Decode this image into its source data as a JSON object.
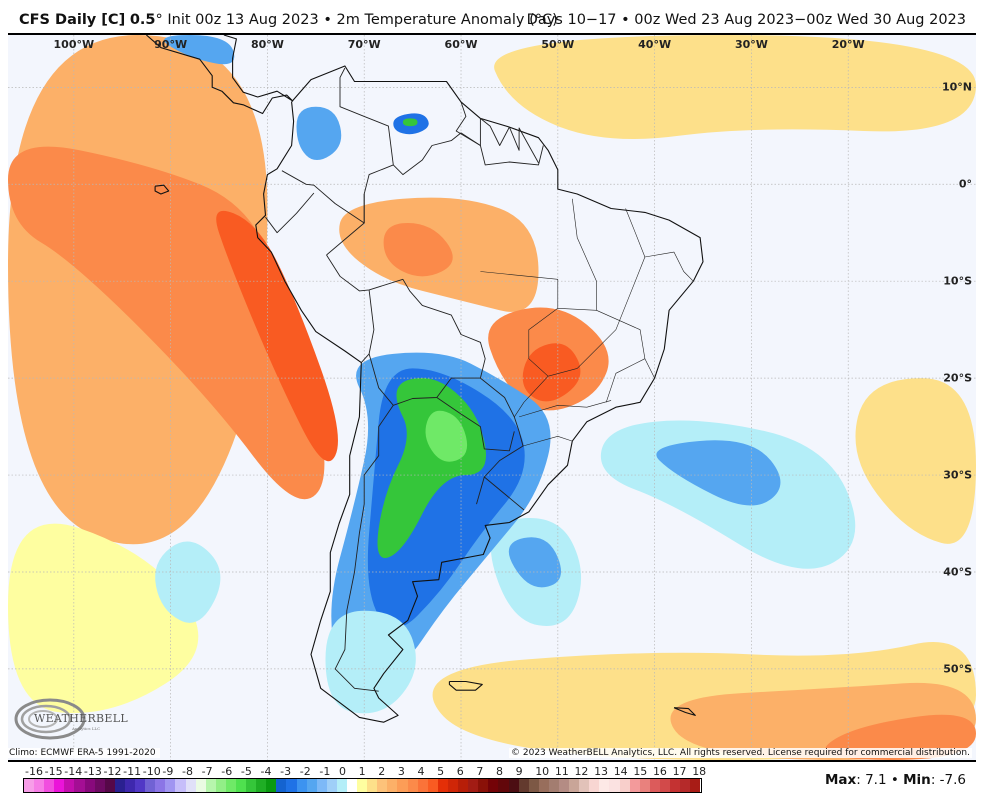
{
  "header": {
    "model": "CFS Daily [C]",
    "resolution": "0.5",
    "degree_symbol": "°",
    "init": "Init 00z 13 Aug 2023",
    "separator": "•",
    "field": "2m Temperature Anomaly (°C)",
    "valid_range": "Days 10−17 • 00z Wed 23 Aug 2023−00z Wed 30 Aug 2023"
  },
  "map": {
    "region": "South America",
    "longitude_labels": [
      "100°W",
      "90°W",
      "80°W",
      "70°W",
      "60°W",
      "50°W",
      "40°W",
      "30°W",
      "20°W"
    ],
    "longitude_values": [
      -100,
      -90,
      -80,
      -70,
      -60,
      -50,
      -40,
      -30,
      -20
    ],
    "latitude_labels": [
      "10°N",
      "0°",
      "10°S",
      "20°S",
      "30°S",
      "40°S",
      "50°S"
    ],
    "latitude_values": [
      10,
      0,
      -10,
      -20,
      -30,
      -40,
      -50
    ],
    "extent": {
      "lon_min": -106.8,
      "lon_max": -6.8,
      "lat_max": 15.4,
      "lat_min": -59.4
    },
    "anomaly_regions": [
      {
        "name": "east-pacific-warm",
        "value": 3,
        "poly": [
          [
            -106.8,
            15.4
          ],
          [
            -80,
            15.4
          ],
          [
            -80,
            -20
          ],
          [
            -90,
            -40
          ],
          [
            -106.8,
            -32
          ]
        ]
      },
      {
        "name": "east-pacific-warmer",
        "value": 4,
        "poly": [
          [
            -106.8,
            5
          ],
          [
            -92,
            2
          ],
          [
            -82,
            -2
          ],
          [
            -78,
            -12
          ],
          [
            -73,
            -30
          ],
          [
            -77,
            -34
          ],
          [
            -86,
            -22
          ],
          [
            -100,
            -8
          ],
          [
            -106.8,
            -4
          ]
        ]
      },
      {
        "name": "peru-coast-hot",
        "value": 5,
        "poly": [
          [
            -86,
            -2
          ],
          [
            -81,
            -4
          ],
          [
            -77,
            -12
          ],
          [
            -72,
            -26
          ],
          [
            -74,
            -30
          ],
          [
            -79,
            -20
          ],
          [
            -84,
            -8
          ]
        ]
      },
      {
        "name": "south-pacific-mild",
        "value": 1,
        "poly": [
          [
            -106.8,
            -33
          ],
          [
            -92,
            -38
          ],
          [
            -85,
            -48
          ],
          [
            -96,
            -55
          ],
          [
            -106.8,
            -54
          ]
        ]
      },
      {
        "name": "south-pacific-neutral",
        "value": 0,
        "poly": [
          [
            -106.8,
            -54
          ],
          [
            -96,
            -55
          ],
          [
            -88,
            -59.4
          ],
          [
            -106.8,
            -59.4
          ]
        ]
      },
      {
        "name": "south-pacific-cool",
        "value": -1,
        "poly": [
          [
            -92,
            -39
          ],
          [
            -88,
            -36
          ],
          [
            -84,
            -40
          ],
          [
            -87,
            -46
          ],
          [
            -91,
            -44
          ]
        ]
      },
      {
        "name": "amazon-warm",
        "value": 3,
        "poly": [
          [
            -72,
            -2
          ],
          [
            -60,
            -1
          ],
          [
            -52,
            -4
          ],
          [
            -52,
            -14
          ],
          [
            -60,
            -12
          ],
          [
            -68,
            -10
          ],
          [
            -73,
            -6
          ]
        ]
      },
      {
        "name": "amazon-warmer",
        "value": 4,
        "poly": [
          [
            -68,
            -4
          ],
          [
            -63,
            -4
          ],
          [
            -60,
            -8
          ],
          [
            -64,
            -10
          ],
          [
            -68,
            -8
          ]
        ]
      },
      {
        "name": "brazil-central-warm",
        "value": 4,
        "poly": [
          [
            -58,
            -14
          ],
          [
            -50,
            -12
          ],
          [
            -44,
            -17
          ],
          [
            -46,
            -22
          ],
          [
            -52,
            -24
          ],
          [
            -56,
            -20
          ]
        ]
      },
      {
        "name": "brazil-central-hot",
        "value": 5,
        "poly": [
          [
            -53,
            -17
          ],
          [
            -49,
            -16
          ],
          [
            -47,
            -20
          ],
          [
            -51,
            -23
          ],
          [
            -54,
            -21
          ]
        ]
      },
      {
        "name": "northeast-brazil-neutral",
        "value": 0,
        "poly": [
          [
            -48,
            -3
          ],
          [
            -38,
            -3
          ],
          [
            -35,
            -6
          ],
          [
            -36,
            -12
          ],
          [
            -40,
            -16
          ],
          [
            -44,
            -12
          ],
          [
            -47,
            -8
          ]
        ]
      },
      {
        "name": "atlantic-north-warm",
        "value": 2,
        "poly": [
          [
            -58,
            15.4
          ],
          [
            -6.8,
            15.4
          ],
          [
            -6.8,
            5
          ],
          [
            -30,
            6
          ],
          [
            -45,
            4
          ],
          [
            -55,
            8
          ]
        ]
      },
      {
        "name": "atlantic-equator-neutral",
        "value": 0,
        "poly": [
          [
            -40,
            2
          ],
          [
            -20,
            2
          ],
          [
            -6.8,
            0
          ],
          [
            -6.8,
            -4
          ],
          [
            -25,
            -3
          ],
          [
            -38,
            -1
          ]
        ]
      },
      {
        "name": "south-atlantic-cool",
        "value": -1,
        "poly": [
          [
            -45,
            -25
          ],
          [
            -35,
            -24
          ],
          [
            -22,
            -27
          ],
          [
            -18,
            -37
          ],
          [
            -25,
            -41
          ],
          [
            -38,
            -33
          ],
          [
            -46,
            -30
          ]
        ]
      },
      {
        "name": "south-atlantic-cooler",
        "value": -2,
        "poly": [
          [
            -41,
            -27
          ],
          [
            -30,
            -26
          ],
          [
            -26,
            -31
          ],
          [
            -30,
            -34
          ],
          [
            -38,
            -30
          ]
        ]
      },
      {
        "name": "argentine-sea-cool",
        "value": -1,
        "poly": [
          [
            -58,
            -35
          ],
          [
            -50,
            -34
          ],
          [
            -47,
            -40
          ],
          [
            -49,
            -46
          ],
          [
            -55,
            -45
          ]
        ]
      },
      {
        "name": "argentine-sea-cooler",
        "value": -2,
        "poly": [
          [
            -56,
            -37
          ],
          [
            -51,
            -36
          ],
          [
            -49,
            -41
          ],
          [
            -53,
            -42
          ]
        ]
      },
      {
        "name": "east-atlantic-warm",
        "value": 2,
        "poly": [
          [
            -18,
            -20
          ],
          [
            -6.8,
            -20
          ],
          [
            -6.8,
            -38
          ],
          [
            -14,
            -36
          ],
          [
            -20,
            -28
          ]
        ]
      },
      {
        "name": "far-south-warm",
        "value": 2,
        "poly": [
          [
            -66,
            -50
          ],
          [
            -40,
            -48
          ],
          [
            -20,
            -49
          ],
          [
            -6.8,
            -46
          ],
          [
            -6.8,
            -59.4
          ],
          [
            -58,
            -59.4
          ]
        ]
      },
      {
        "name": "far-south-warmer",
        "value": 3,
        "poly": [
          [
            -40,
            -53
          ],
          [
            -22,
            -52
          ],
          [
            -6.8,
            -51
          ],
          [
            -6.8,
            -59.4
          ],
          [
            -36,
            -59.4
          ]
        ]
      },
      {
        "name": "far-south-hot",
        "value": 4,
        "poly": [
          [
            -20,
            -56
          ],
          [
            -6.8,
            -54
          ],
          [
            -6.8,
            -59.4
          ],
          [
            -24,
            -59.4
          ]
        ]
      },
      {
        "name": "southern-cone-cool",
        "value": -2,
        "poly": [
          [
            -72,
            -18
          ],
          [
            -62,
            -17
          ],
          [
            -56,
            -20
          ],
          [
            -50,
            -24
          ],
          [
            -52,
            -32
          ],
          [
            -57,
            -38
          ],
          [
            -62,
            -44
          ],
          [
            -66,
            -50
          ],
          [
            -72,
            -52
          ],
          [
            -74,
            -44
          ],
          [
            -71,
            -33
          ],
          [
            -69,
            -24
          ]
        ]
      },
      {
        "name": "southern-cone-colder",
        "value": -3,
        "poly": [
          [
            -68,
            -19
          ],
          [
            -62,
            -19
          ],
          [
            -54,
            -24
          ],
          [
            -53,
            -30
          ],
          [
            -58,
            -36
          ],
          [
            -62,
            -42
          ],
          [
            -67,
            -47
          ],
          [
            -70,
            -42
          ],
          [
            -69,
            -30
          ]
        ]
      },
      {
        "name": "chaco-pampas-green",
        "value": -5,
        "poly": [
          [
            -66,
            -20
          ],
          [
            -62,
            -20
          ],
          [
            -58,
            -24
          ],
          [
            -57,
            -30
          ],
          [
            -62,
            -30
          ],
          [
            -66,
            -38
          ],
          [
            -69,
            -39
          ],
          [
            -68,
            -32
          ],
          [
            -65,
            -26
          ],
          [
            -67,
            -22
          ]
        ]
      },
      {
        "name": "chaco-core-green",
        "value": -6,
        "poly": [
          [
            -63,
            -23
          ],
          [
            -60,
            -24
          ],
          [
            -59,
            -28
          ],
          [
            -62,
            -29
          ],
          [
            -64,
            -26
          ]
        ]
      },
      {
        "name": "venezuela-cold-spot",
        "value": -3,
        "poly": [
          [
            -67,
            7
          ],
          [
            -64,
            7.5
          ],
          [
            -63,
            6
          ],
          [
            -65,
            5
          ],
          [
            -67,
            5.5
          ]
        ]
      },
      {
        "name": "venezuela-green-spot",
        "value": -5,
        "poly": [
          [
            -66,
            6.8
          ],
          [
            -64.5,
            6.8
          ],
          [
            -64.5,
            6
          ],
          [
            -66,
            6
          ]
        ]
      },
      {
        "name": "colombia-cool",
        "value": -2,
        "poly": [
          [
            -77,
            8
          ],
          [
            -73,
            8
          ],
          [
            -72,
            4
          ],
          [
            -75,
            2
          ],
          [
            -77,
            4
          ]
        ]
      },
      {
        "name": "central-america-cool",
        "value": -2,
        "poly": [
          [
            -92,
            15.4
          ],
          [
            -84,
            15.4
          ],
          [
            -83,
            12
          ],
          [
            -88,
            13
          ]
        ]
      },
      {
        "name": "patagonia-light-cool",
        "value": -1,
        "poly": [
          [
            -74,
            -44
          ],
          [
            -66,
            -44
          ],
          [
            -64,
            -50
          ],
          [
            -68,
            -55
          ],
          [
            -74,
            -54
          ]
        ]
      }
    ]
  },
  "credits": {
    "climo": "Climo: ECMWF ERA-5 1991-2020",
    "copyright": "© 2023 WeatherBELL Analytics, LLC. All rights reserved. License required for commercial distribution.",
    "logo_text": "WEATHERBELL",
    "logo_sub": "Analytics LLC"
  },
  "legend": {
    "labels": [
      "-16",
      "-15",
      "-14",
      "-13",
      "-12",
      "-11",
      "-10",
      "-9",
      "-8",
      "-7",
      "-6",
      "-5",
      "-4",
      "-3",
      "-2",
      "-1",
      "0",
      "1",
      "2",
      "3",
      "4",
      "5",
      "6",
      "7",
      "8",
      "9",
      "10",
      "11",
      "12",
      "13",
      "14",
      "15",
      "16",
      "17",
      "18"
    ],
    "colors": [
      "#f79ee8",
      "#f67ee6",
      "#f14edf",
      "#eb14d9",
      "#c40fae",
      "#a40e94",
      "#88097c",
      "#6e0a63",
      "#560848",
      "#2a2090",
      "#3e28ad",
      "#5138c6",
      "#7162d4",
      "#8b75e6",
      "#a095f1",
      "#c6befa",
      "#e0e0f8",
      "#eafbe3",
      "#b6f5ad",
      "#92ee87",
      "#6fe967",
      "#4fe14f",
      "#35c63a",
      "#1fae25",
      "#0a9a11",
      "#1463d0",
      "#1f72e6",
      "#3c93f0",
      "#55a6f0",
      "#7db9f7",
      "#9fcff8",
      "#b4eef8",
      "#ffffff",
      "#fefea0",
      "#fde08a",
      "#fdc27a",
      "#fcb068",
      "#fc9d57",
      "#fb8a4a",
      "#fa7339",
      "#f95b22",
      "#e42f07",
      "#cf2607",
      "#b71e08",
      "#a21c14",
      "#8a1108",
      "#740307",
      "#62070a",
      "#4c0e13",
      "#633a2e",
      "#7d5845",
      "#986e5c",
      "#a37d70",
      "#b48c84",
      "#c9a598",
      "#e2c2b9",
      "#f8d6d2",
      "#fde9e6",
      "#fbe2e1",
      "#f8cfcb",
      "#f39a9b",
      "#e9817d",
      "#dc5b5b",
      "#d24a4a",
      "#c43232",
      "#b52a2a",
      "#a81c16"
    ],
    "color_by_value": {
      "-16": "#f79ee8",
      "-15": "#f67ee6",
      "-14": "#f14edf",
      "-13": "#eb14d9",
      "-12": "#c40fae",
      "-11": "#a40e94",
      "-10": "#88097c",
      "-9": "#6e0a63",
      "-8": "#560848",
      "-7": "#2a2090",
      "-6": "#3e28ad",
      "-5": "#5138c6",
      "-4": "#7162d4",
      "-3": "#8b75e6",
      "-2": "#a095f1",
      "-1": "#c6befa"
    },
    "anomaly_colors": {
      "-6": "#6fe967",
      "-5": "#35c63a",
      "-4": "#0a9a11",
      "-3": "#1f72e6",
      "-2": "#55a6f0",
      "-1": "#b4eef8",
      "0": "#f3f6fd",
      "1": "#fefea0",
      "2": "#fde08a",
      "3": "#fcb068",
      "4": "#fb8a4a",
      "5": "#f95b22"
    }
  },
  "stats": {
    "max_label": "Max",
    "max_value": "7.1",
    "min_label": "Min",
    "min_value": "-7.6",
    "separator": "•"
  }
}
